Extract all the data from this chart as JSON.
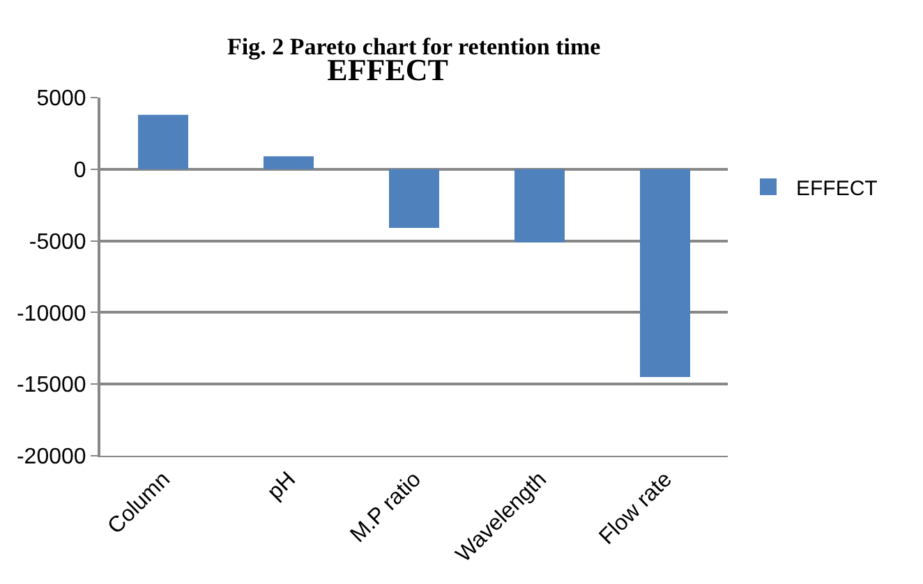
{
  "chart_data": {
    "type": "bar",
    "title": "EFFECT",
    "annotations": [
      "Fig. 2 Pareto chart for retention time"
    ],
    "categories": [
      "Column",
      "pH",
      "M.P ratio",
      "Wavelength",
      "Flow rate"
    ],
    "series": [
      {
        "name": "EFFECT",
        "color": "#4f81bd",
        "values": [
          3800,
          900,
          -4100,
          -5100,
          -14500
        ]
      }
    ],
    "ylim": [
      -20000,
      5000
    ],
    "yticks": [
      -20000,
      -15000,
      -10000,
      -5000,
      0,
      5000
    ],
    "grid": "y",
    "legend": "right"
  }
}
